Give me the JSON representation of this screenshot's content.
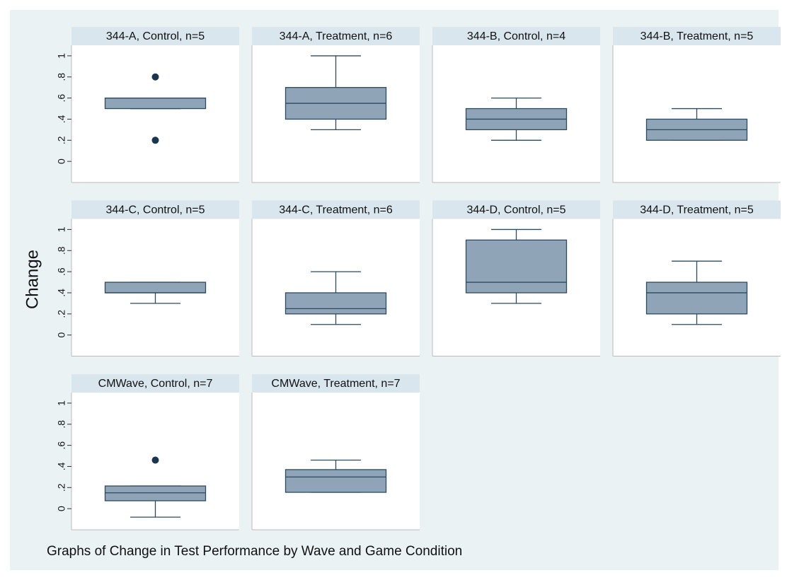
{
  "y_axis": {
    "label": "Change",
    "ylim": [
      -0.2,
      1.1
    ],
    "yticks": [
      0,
      {
        "value": 0.2,
        "label": ".2"
      },
      {
        "value": 0.4,
        "label": ".4"
      },
      {
        "value": 0.6,
        "label": ".6"
      },
      {
        "value": 0.8,
        "label": ".8"
      },
      1
    ]
  },
  "caption": "Graphs of Change in Test Performance by Wave and Game Condition",
  "color": "#8fa5b7",
  "chart_data": [
    {
      "type": "box",
      "title": "344-A, Control, n=5",
      "box": {
        "min": 0.5,
        "q1": 0.5,
        "median": 0.6,
        "q3": 0.6,
        "max": 0.6
      },
      "outliers": [
        0.8,
        0.2
      ]
    },
    {
      "type": "box",
      "title": "344-A, Treatment, n=6",
      "box": {
        "min": 0.3,
        "q1": 0.4,
        "median": 0.55,
        "q3": 0.7,
        "max": 1
      },
      "outliers": []
    },
    {
      "type": "box",
      "title": "344-B, Control, n=4",
      "box": {
        "min": 0.2,
        "q1": 0.3,
        "median": 0.4,
        "q3": 0.5,
        "max": 0.6
      },
      "outliers": []
    },
    {
      "type": "box",
      "title": "344-B, Treatment, n=5",
      "box": {
        "min": 0.2,
        "q1": 0.2,
        "median": 0.3,
        "q3": 0.4,
        "max": 0.5
      },
      "outliers": []
    },
    {
      "type": "box",
      "title": "344-C, Control, n=5",
      "box": {
        "min": 0.3,
        "q1": 0.4,
        "median": 0.4,
        "q3": 0.5,
        "max": 0.5
      },
      "outliers": []
    },
    {
      "type": "box",
      "title": "344-C, Treatment, n=6",
      "box": {
        "min": 0.1,
        "q1": 0.2,
        "median": 0.25,
        "q3": 0.4,
        "max": 0.6
      },
      "outliers": []
    },
    {
      "type": "box",
      "title": "344-D, Control, n=5",
      "box": {
        "min": 0.3,
        "q1": 0.4,
        "median": 0.5,
        "q3": 0.9,
        "max": 1
      },
      "outliers": []
    },
    {
      "type": "box",
      "title": "344-D, Treatment, n=5",
      "box": {
        "min": 0.1,
        "q1": 0.2,
        "median": 0.4,
        "q3": 0.5,
        "max": 0.7
      },
      "outliers": []
    },
    {
      "type": "box",
      "title": "CMWave, Control, n=7",
      "box": {
        "min": -0.08,
        "q1": 0.075,
        "median": 0.15,
        "q3": 0.215,
        "max": 0.215
      },
      "outliers": [
        0.46
      ]
    },
    {
      "type": "box",
      "title": "CMWave, Treatment, n=7",
      "box": {
        "min": 0.155,
        "q1": 0.155,
        "median": 0.3,
        "q3": 0.37,
        "max": 0.46
      },
      "outliers": []
    }
  ]
}
